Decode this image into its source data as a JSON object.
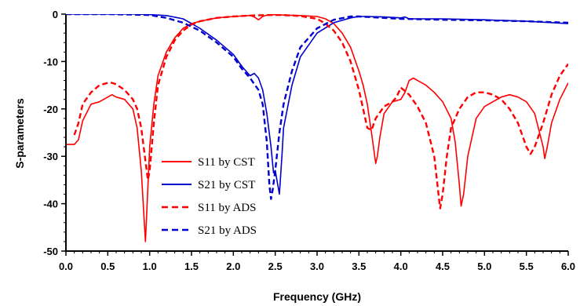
{
  "chart_data": {
    "type": "line",
    "title": "",
    "xlabel": "Frequency (GHz)",
    "ylabel": "S-parameters",
    "xlim": [
      0,
      6
    ],
    "ylim": [
      -50,
      0
    ],
    "x_ticks": [
      0.0,
      0.5,
      1.0,
      1.5,
      2.0,
      2.5,
      3.0,
      3.5,
      4.0,
      4.5,
      5.0,
      5.5,
      6.0
    ],
    "x_tick_labels": [
      "0.0",
      "0.5",
      "1.0",
      "1.5",
      "2.0",
      "2.5",
      "3.0",
      "3.5",
      "4.0",
      "4.5",
      "5.0",
      "5.5",
      "6.0"
    ],
    "y_ticks": [
      0,
      -10,
      -20,
      -30,
      -40,
      -50
    ],
    "y_tick_labels": [
      "0",
      "-10",
      "-20",
      "-30",
      "-40",
      "-50"
    ],
    "grid": false,
    "legend_position": "center-left",
    "series": [
      {
        "name": "S11 by CST",
        "color": "#ff0000",
        "dash": "solid",
        "x": [
          0.0,
          0.1,
          0.15,
          0.2,
          0.3,
          0.4,
          0.5,
          0.55,
          0.6,
          0.7,
          0.8,
          0.85,
          0.9,
          0.93,
          0.95,
          0.97,
          1.0,
          1.05,
          1.1,
          1.2,
          1.3,
          1.4,
          1.5,
          1.6,
          1.8,
          2.0,
          2.2,
          2.25,
          2.3,
          2.35,
          2.4,
          2.5,
          2.6,
          2.8,
          3.0,
          3.1,
          3.2,
          3.3,
          3.4,
          3.5,
          3.55,
          3.6,
          3.65,
          3.7,
          3.72,
          3.75,
          3.8,
          3.9,
          4.0,
          4.05,
          4.1,
          4.15,
          4.2,
          4.3,
          4.4,
          4.5,
          4.6,
          4.65,
          4.7,
          4.72,
          4.75,
          4.8,
          4.9,
          5.0,
          5.1,
          5.2,
          5.3,
          5.4,
          5.5,
          5.6,
          5.7,
          5.72,
          5.75,
          5.8,
          5.9,
          6.0
        ],
        "y": [
          -27.5,
          -27.5,
          -26.5,
          -22.5,
          -19,
          -18.5,
          -17.5,
          -17,
          -17.5,
          -18,
          -20,
          -24,
          -33,
          -42,
          -48,
          -40,
          -28,
          -19,
          -13,
          -8,
          -5,
          -3,
          -2,
          -1.5,
          -0.8,
          -0.5,
          -0.3,
          -0.6,
          -1.2,
          -0.5,
          -0.2,
          -0.1,
          -0.2,
          -0.3,
          -0.5,
          -1,
          -2,
          -4,
          -7,
          -12,
          -15,
          -19,
          -25,
          -31.5,
          -30,
          -26,
          -21,
          -18.5,
          -18,
          -16.5,
          -14,
          -13.5,
          -14,
          -15,
          -16.5,
          -18.5,
          -22,
          -27,
          -36,
          -40.5,
          -38,
          -30,
          -22,
          -19.5,
          -18.5,
          -17.5,
          -17,
          -17.5,
          -18.5,
          -21,
          -28,
          -30.5,
          -28,
          -23,
          -18,
          -14.5
        ]
      },
      {
        "name": "S21 by CST",
        "color": "#0000cc",
        "dash": "solid",
        "x": [
          0.0,
          0.5,
          0.8,
          1.0,
          1.2,
          1.4,
          1.6,
          1.8,
          2.0,
          2.1,
          2.2,
          2.25,
          2.3,
          2.35,
          2.4,
          2.45,
          2.48,
          2.5,
          2.52,
          2.55,
          2.58,
          2.6,
          2.7,
          2.8,
          3.0,
          3.2,
          3.4,
          3.5,
          3.6,
          3.8,
          4.0,
          4.05,
          4.1,
          4.5,
          5.0,
          5.5,
          6.0
        ],
        "y": [
          0,
          0,
          0,
          -0.1,
          -0.3,
          -1,
          -3,
          -5.5,
          -8.5,
          -11,
          -13,
          -12.5,
          -13.5,
          -16,
          -21,
          -28,
          -33.5,
          -33,
          -35,
          -38,
          -30,
          -24,
          -15,
          -9,
          -4,
          -1.8,
          -0.8,
          -0.5,
          -0.5,
          -0.6,
          -0.8,
          -0.6,
          -1,
          -1,
          -1.2,
          -1.5,
          -2
        ]
      },
      {
        "name": "S11 by ADS",
        "color": "#ff0000",
        "dash": "dashed",
        "x": [
          0.1,
          0.15,
          0.2,
          0.3,
          0.4,
          0.5,
          0.55,
          0.6,
          0.7,
          0.8,
          0.85,
          0.9,
          0.95,
          0.98,
          1.0,
          1.05,
          1.1,
          1.2,
          1.3,
          1.4,
          1.5,
          1.6,
          1.8,
          2.0,
          2.2,
          2.4,
          2.6,
          2.8,
          3.0,
          3.1,
          3.2,
          3.3,
          3.4,
          3.5,
          3.55,
          3.6,
          3.65,
          3.7,
          3.8,
          3.9,
          3.95,
          4.0,
          4.1,
          4.2,
          4.3,
          4.4,
          4.45,
          4.47,
          4.5,
          4.55,
          4.6,
          4.7,
          4.8,
          4.9,
          5.0,
          5.1,
          5.2,
          5.3,
          5.4,
          5.5,
          5.55,
          5.6,
          5.7,
          5.8,
          5.9,
          6.0
        ],
        "y": [
          -25.5,
          -23,
          -19,
          -16.5,
          -15,
          -14.5,
          -14.5,
          -14.8,
          -16,
          -18,
          -20,
          -24,
          -31,
          -35,
          -33,
          -23,
          -15,
          -9,
          -5.5,
          -3.5,
          -2.2,
          -1.5,
          -0.8,
          -0.5,
          -0.3,
          -0.2,
          -0.2,
          -0.4,
          -1,
          -2,
          -3.5,
          -6,
          -10,
          -16,
          -20,
          -24,
          -24.5,
          -22,
          -19.5,
          -18.5,
          -17.5,
          -15.5,
          -17,
          -19.5,
          -23,
          -30,
          -38,
          -41,
          -38,
          -30,
          -24,
          -20,
          -17.5,
          -16.5,
          -16.5,
          -17,
          -18,
          -20,
          -23,
          -28,
          -29.5,
          -28,
          -23,
          -17,
          -13,
          -10.5
        ]
      },
      {
        "name": "S21 by ADS",
        "color": "#0000cc",
        "dash": "dashed",
        "x": [
          0.0,
          0.5,
          0.8,
          1.0,
          1.2,
          1.4,
          1.6,
          1.8,
          2.0,
          2.1,
          2.2,
          2.3,
          2.35,
          2.4,
          2.43,
          2.45,
          2.47,
          2.5,
          2.55,
          2.6,
          2.7,
          2.8,
          3.0,
          3.2,
          3.4,
          3.5,
          3.6,
          3.8,
          4.0,
          4.5,
          5.0,
          5.5,
          6.0
        ],
        "y": [
          0,
          0,
          -0.1,
          -0.2,
          -0.8,
          -1.8,
          -3.5,
          -6,
          -9,
          -11.5,
          -13.5,
          -16,
          -19,
          -27,
          -36,
          -39,
          -37,
          -33,
          -25,
          -19,
          -12,
          -7,
          -3,
          -1.2,
          -0.5,
          -0.5,
          -0.6,
          -0.8,
          -1,
          -1.2,
          -1.3,
          -1.5,
          -1.8
        ]
      }
    ]
  }
}
